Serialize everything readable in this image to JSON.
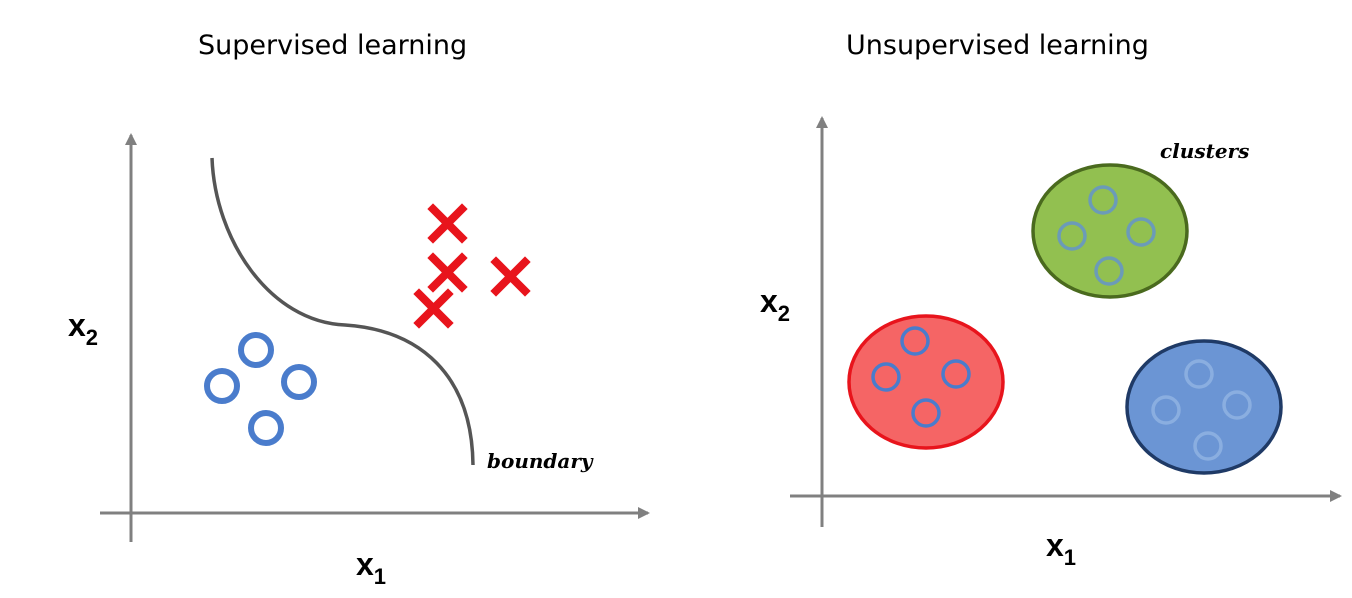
{
  "left_panel": {
    "title": "Supervised learning",
    "x_axis_label": "x",
    "x_axis_sub": "1",
    "y_axis_label": "x",
    "y_axis_sub": "2",
    "boundary_label": "boundary",
    "circle_class_color": "#4a7ccc",
    "cross_class_color": "#e8141c",
    "boundary_color": "#555555"
  },
  "right_panel": {
    "title": "Unsupervised learning",
    "x_axis_label": "x",
    "x_axis_sub": "1",
    "y_axis_label": "x",
    "y_axis_sub": "2",
    "clusters_label": "clusters",
    "clusters": [
      {
        "name": "red-cluster",
        "fill": "#f56565",
        "stroke": "#e8141c"
      },
      {
        "name": "green-cluster",
        "fill": "#92c050",
        "stroke": "#4a6a1e"
      },
      {
        "name": "blue-cluster",
        "fill": "#6b95d4",
        "stroke": "#1f3a66"
      }
    ]
  },
  "axis_color": "#808080"
}
